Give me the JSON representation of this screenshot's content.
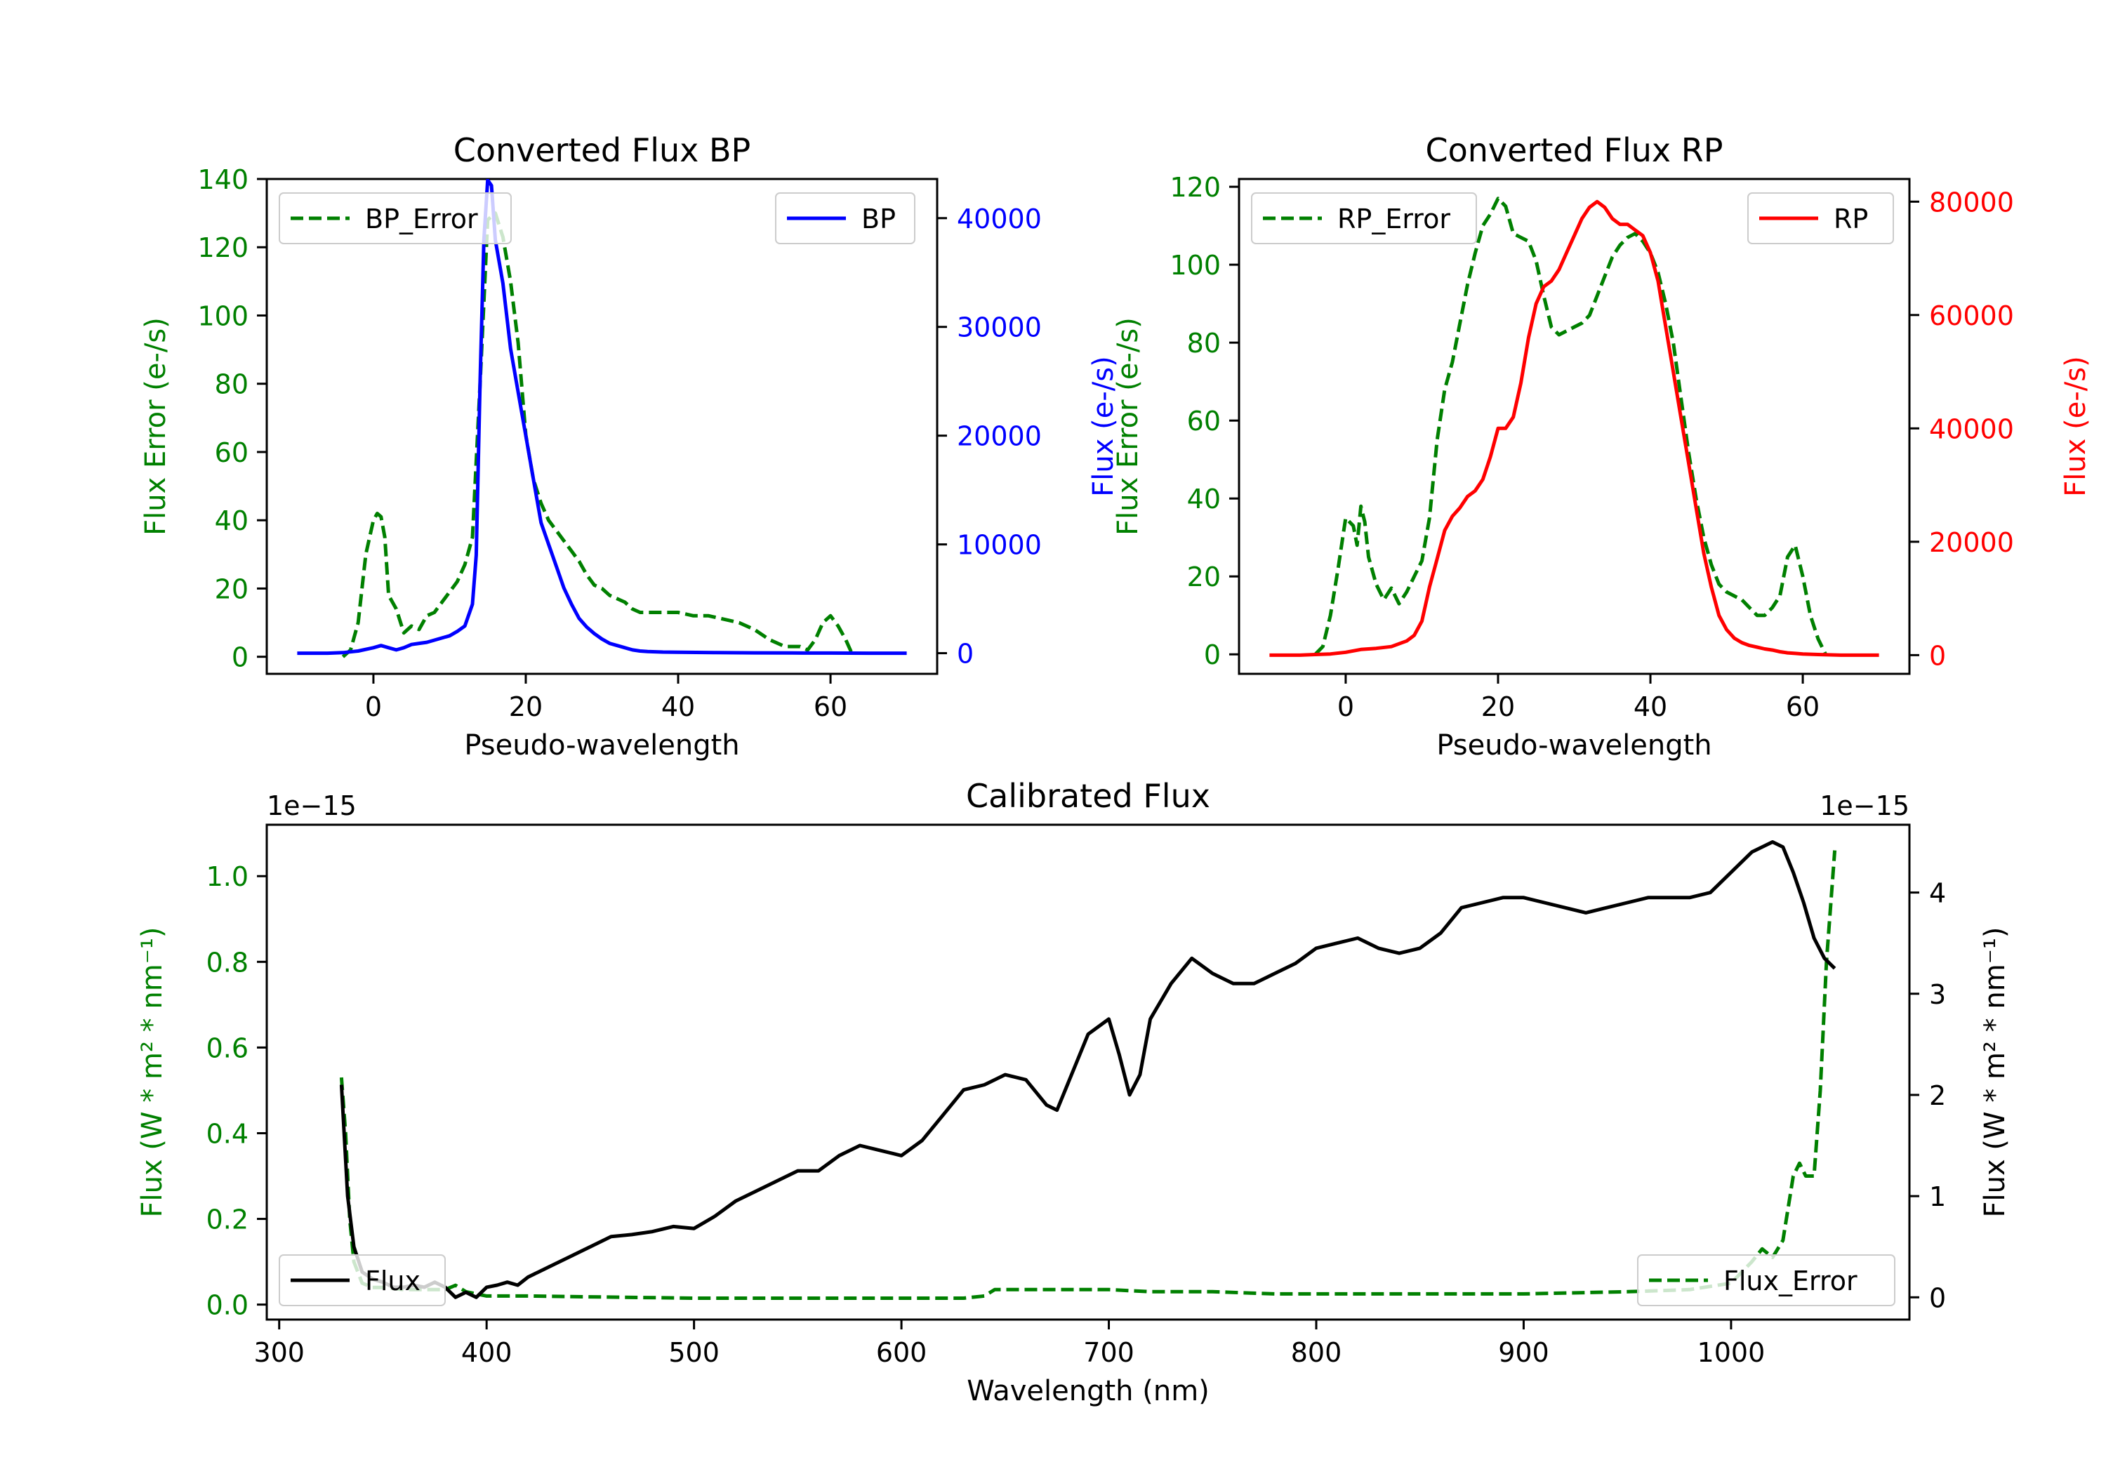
{
  "chart_data": [
    {
      "id": "bp",
      "type": "line",
      "title": "Converted Flux BP",
      "xlabel": "Pseudo-wavelength",
      "xlim": [
        -14,
        74
      ],
      "xticks": [
        0,
        20,
        40,
        60
      ],
      "left_axis": {
        "label": "Flux Error (e-/s)",
        "color": "#008000",
        "lim": [
          -5,
          140
        ],
        "ticks": [
          0,
          20,
          40,
          60,
          80,
          100,
          120,
          140
        ]
      },
      "right_axis": {
        "label": "Flux (e-/s)",
        "color": "#0000ff",
        "lim": [
          -1900,
          43600
        ],
        "ticks": [
          0,
          10000,
          20000,
          30000,
          40000
        ]
      },
      "legend_left": "BP_Error",
      "legend_right": "BP",
      "series": [
        {
          "name": "BP_Error",
          "axis": "left",
          "color": "#008000",
          "dashed": true,
          "x": [
            -4,
            -3,
            -2,
            -1,
            0,
            0.5,
            1,
            1.5,
            2,
            3,
            4,
            5,
            6,
            7,
            8,
            9,
            10,
            11,
            12,
            13,
            14,
            15,
            16,
            17,
            18,
            19,
            20,
            21,
            22,
            23,
            24,
            25,
            26,
            27,
            28,
            29,
            30,
            31,
            32,
            33,
            34,
            35,
            36,
            38,
            40,
            42,
            44,
            46,
            48,
            50,
            52,
            54,
            55,
            56,
            57,
            58,
            59,
            60,
            61,
            62,
            63
          ],
          "y": [
            0,
            2,
            10,
            30,
            40,
            42,
            41,
            35,
            18,
            14,
            7,
            9,
            8,
            12,
            13,
            16,
            19,
            22,
            27,
            35,
            80,
            128,
            130,
            123,
            110,
            92,
            65,
            52,
            45,
            40,
            37,
            34,
            31,
            28,
            24,
            21,
            20,
            18,
            17,
            16,
            14,
            13,
            13,
            13,
            13,
            12,
            12,
            11,
            10,
            8,
            5,
            3,
            3,
            3,
            2,
            5,
            10,
            12,
            9,
            5,
            0
          ]
        },
        {
          "name": "BP",
          "axis": "right",
          "color": "#0000ff",
          "dashed": false,
          "x": [
            -10,
            -8,
            -6,
            -4,
            -2,
            0,
            1,
            2,
            3,
            4,
            5,
            6,
            7,
            8,
            9,
            10,
            11,
            12,
            13,
            13.5,
            14,
            14.5,
            15,
            15.5,
            16,
            16.5,
            17,
            18,
            19,
            20,
            21,
            22,
            23,
            24,
            25,
            26,
            27,
            28,
            29,
            30,
            31,
            32,
            33,
            34,
            35,
            36,
            38,
            40,
            45,
            50,
            55,
            60,
            65,
            70
          ],
          "y": [
            0,
            0,
            0,
            50,
            200,
            500,
            700,
            500,
            300,
            500,
            800,
            900,
            1000,
            1200,
            1400,
            1600,
            2000,
            2500,
            4500,
            9000,
            25000,
            38000,
            43500,
            43000,
            38000,
            36000,
            34000,
            28000,
            24000,
            20000,
            16000,
            12000,
            10000,
            8000,
            6000,
            4500,
            3200,
            2400,
            1800,
            1300,
            900,
            700,
            500,
            300,
            200,
            150,
            100,
            80,
            50,
            30,
            20,
            10,
            0,
            0
          ]
        }
      ]
    },
    {
      "id": "rp",
      "type": "line",
      "title": "Converted Flux RP",
      "xlabel": "Pseudo-wavelength",
      "xlim": [
        -14,
        74
      ],
      "xticks": [
        0,
        20,
        40,
        60
      ],
      "left_axis": {
        "label": "Flux Error (e-/s)",
        "color": "#008000",
        "lim": [
          -5,
          122
        ],
        "ticks": [
          0,
          20,
          40,
          60,
          80,
          100,
          120
        ]
      },
      "right_axis": {
        "label": "Flux (e-/s)",
        "color": "#ff0000",
        "lim": [
          -3300,
          84000
        ],
        "ticks": [
          0,
          20000,
          40000,
          60000,
          80000
        ]
      },
      "legend_left": "RP_Error",
      "legend_right": "RP",
      "series": [
        {
          "name": "RP_Error",
          "axis": "left",
          "color": "#008000",
          "dashed": true,
          "x": [
            -4,
            -3,
            -2,
            -1,
            0,
            1,
            1.5,
            2,
            2.5,
            3,
            4,
            5,
            6,
            7,
            8,
            9,
            10,
            11,
            12,
            13,
            14,
            15,
            16,
            17,
            18,
            19,
            20,
            21,
            22,
            23,
            24,
            25,
            26,
            27,
            28,
            29,
            30,
            31,
            32,
            33,
            34,
            35,
            36,
            37,
            38,
            39,
            40,
            41,
            42,
            43,
            44,
            45,
            46,
            47,
            48,
            49,
            50,
            51,
            52,
            53,
            54,
            55,
            56,
            57,
            58,
            59,
            60,
            61,
            62,
            63
          ],
          "y": [
            0,
            2,
            10,
            22,
            35,
            33,
            28,
            38,
            34,
            25,
            18,
            14,
            17,
            13,
            16,
            20,
            24,
            35,
            55,
            68,
            75,
            85,
            95,
            103,
            110,
            113,
            117,
            115,
            108,
            107,
            106,
            101,
            92,
            84,
            82,
            83,
            84,
            85,
            87,
            92,
            97,
            102,
            105,
            107,
            108,
            106,
            103,
            98,
            90,
            80,
            66,
            52,
            40,
            30,
            23,
            18,
            16,
            15,
            14,
            12,
            10,
            10,
            12,
            15,
            25,
            28,
            20,
            10,
            4,
            0
          ]
        },
        {
          "name": "RP",
          "axis": "right",
          "color": "#ff0000",
          "dashed": false,
          "x": [
            -10,
            -8,
            -6,
            -4,
            -2,
            0,
            2,
            4,
            6,
            8,
            9,
            10,
            11,
            12,
            13,
            14,
            15,
            16,
            17,
            18,
            19,
            20,
            21,
            22,
            23,
            24,
            25,
            26,
            27,
            28,
            29,
            30,
            31,
            32,
            33,
            34,
            35,
            36,
            37,
            38,
            39,
            40,
            41,
            42,
            43,
            44,
            45,
            46,
            47,
            48,
            49,
            50,
            51,
            52,
            53,
            54,
            55,
            56,
            57,
            58,
            59,
            60,
            62,
            65,
            70
          ],
          "y": [
            0,
            0,
            0,
            100,
            200,
            500,
            1000,
            1200,
            1500,
            2500,
            3500,
            6000,
            12000,
            17000,
            22000,
            24500,
            26000,
            28000,
            29000,
            31000,
            35000,
            40000,
            40000,
            42000,
            48000,
            56000,
            62000,
            65000,
            66000,
            68000,
            71000,
            74000,
            77000,
            79000,
            80000,
            79000,
            77000,
            76000,
            76000,
            75000,
            74000,
            71000,
            66000,
            58000,
            50000,
            42000,
            34000,
            26000,
            18000,
            12000,
            7000,
            4500,
            3000,
            2200,
            1700,
            1400,
            1100,
            900,
            600,
            400,
            300,
            200,
            100,
            0,
            0
          ]
        }
      ]
    },
    {
      "id": "calibrated",
      "type": "line",
      "title": "Calibrated Flux",
      "xlabel": "Wavelength (nm)",
      "xlim": [
        294,
        1086
      ],
      "xticks": [
        300,
        400,
        500,
        600,
        700,
        800,
        900,
        1000
      ],
      "left_axis": {
        "label": "Flux (W * m² * nm⁻¹)",
        "color": "#008000",
        "lim": [
          -0.035,
          1.12
        ],
        "ticks": [
          0.0,
          0.2,
          0.4,
          0.6,
          0.8,
          1.0
        ],
        "offset_text": "1e−15"
      },
      "right_axis": {
        "label": "Flux (W * m² * nm⁻¹)",
        "color": "#000000",
        "lim": [
          -0.22,
          4.67
        ],
        "ticks": [
          0,
          1,
          2,
          3,
          4
        ],
        "offset_text": "1e−15"
      },
      "legend_left": "Flux",
      "legend_right": "Flux_Error",
      "series": [
        {
          "name": "Flux",
          "axis": "right",
          "color": "#000000",
          "dashed": false,
          "x": [
            330,
            333,
            336,
            340,
            345,
            350,
            355,
            360,
            365,
            370,
            375,
            380,
            385,
            390,
            395,
            400,
            405,
            410,
            415,
            420,
            425,
            430,
            440,
            450,
            460,
            470,
            480,
            490,
            500,
            510,
            520,
            530,
            540,
            550,
            560,
            570,
            580,
            590,
            600,
            610,
            620,
            630,
            640,
            650,
            660,
            670,
            675,
            680,
            690,
            700,
            705,
            710,
            715,
            720,
            730,
            740,
            750,
            760,
            770,
            780,
            790,
            800,
            810,
            820,
            830,
            840,
            850,
            860,
            870,
            880,
            890,
            900,
            910,
            920,
            930,
            940,
            950,
            960,
            970,
            980,
            990,
            1000,
            1010,
            1020,
            1025,
            1030,
            1035,
            1040,
            1045,
            1050
          ],
          "y": [
            2.1,
            1.0,
            0.5,
            0.25,
            0.18,
            0.15,
            0.1,
            0.1,
            0.12,
            0.1,
            0.15,
            0.1,
            0.0,
            0.05,
            0.0,
            0.1,
            0.12,
            0.15,
            0.12,
            0.2,
            0.25,
            0.3,
            0.4,
            0.5,
            0.6,
            0.62,
            0.65,
            0.7,
            0.68,
            0.8,
            0.95,
            1.05,
            1.15,
            1.25,
            1.25,
            1.4,
            1.5,
            1.45,
            1.4,
            1.55,
            1.8,
            2.05,
            2.1,
            2.2,
            2.15,
            1.9,
            1.85,
            2.1,
            2.6,
            2.75,
            2.4,
            2.0,
            2.2,
            2.75,
            3.1,
            3.35,
            3.2,
            3.1,
            3.1,
            3.2,
            3.3,
            3.45,
            3.5,
            3.55,
            3.45,
            3.4,
            3.45,
            3.6,
            3.85,
            3.9,
            3.95,
            3.95,
            3.9,
            3.85,
            3.8,
            3.85,
            3.9,
            3.95,
            3.95,
            3.95,
            4.0,
            4.2,
            4.4,
            4.5,
            4.45,
            4.2,
            3.9,
            3.55,
            3.35,
            3.25
          ]
        },
        {
          "name": "Flux_Error",
          "axis": "left",
          "color": "#008000",
          "dashed": true,
          "x": [
            330,
            332,
            334,
            336,
            340,
            345,
            350,
            360,
            370,
            380,
            385,
            390,
            400,
            420,
            450,
            500,
            550,
            600,
            630,
            640,
            645,
            660,
            680,
            700,
            720,
            750,
            780,
            800,
            850,
            900,
            950,
            980,
            1000,
            1010,
            1015,
            1020,
            1025,
            1030,
            1033,
            1036,
            1040,
            1043,
            1046,
            1050
          ],
          "y": [
            0.53,
            0.4,
            0.2,
            0.1,
            0.05,
            0.04,
            0.04,
            0.035,
            0.035,
            0.035,
            0.045,
            0.03,
            0.02,
            0.02,
            0.018,
            0.015,
            0.015,
            0.015,
            0.015,
            0.02,
            0.035,
            0.035,
            0.035,
            0.035,
            0.03,
            0.03,
            0.025,
            0.025,
            0.025,
            0.025,
            0.03,
            0.035,
            0.05,
            0.1,
            0.13,
            0.11,
            0.15,
            0.3,
            0.33,
            0.3,
            0.3,
            0.5,
            0.8,
            1.06
          ]
        }
      ]
    }
  ]
}
